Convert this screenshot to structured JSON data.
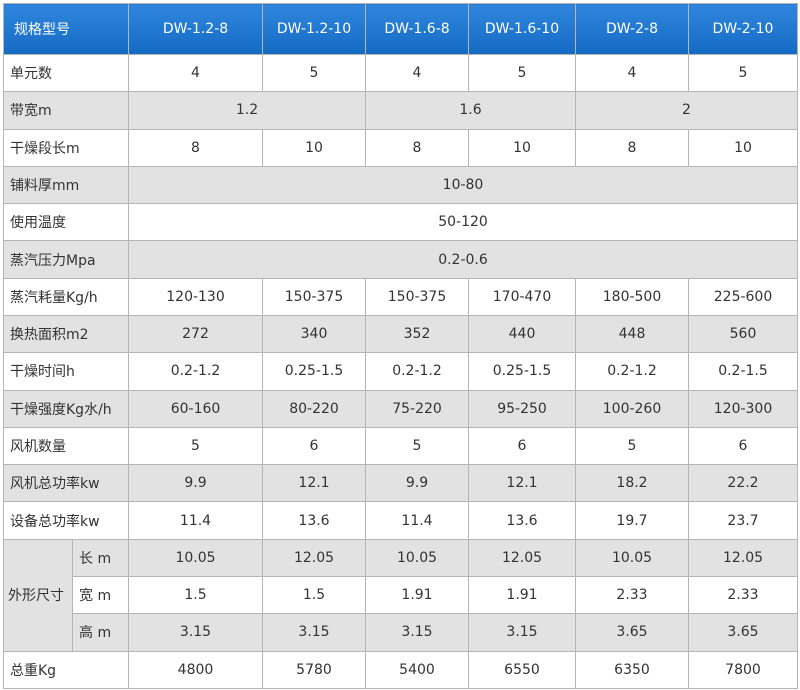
{
  "table": {
    "header": [
      "规格型号",
      "DW-1.2-8",
      "DW-1.2-10",
      "DW-1.6-8",
      "DW-1.6-10",
      "DW-2-8",
      "DW-2-10"
    ],
    "rows": [
      {
        "label": "单元数",
        "cells": [
          "4",
          "5",
          "4",
          "5",
          "4",
          "5"
        ]
      },
      {
        "label": "带宽m",
        "cells": [
          "1.2",
          "1.6",
          "2"
        ]
      },
      {
        "label": "干燥段长m",
        "cells": [
          "8",
          "10",
          "8",
          "10",
          "8",
          "10"
        ]
      },
      {
        "label": "铺料厚mm",
        "cells": [
          "10-80"
        ]
      },
      {
        "label": "使用温度",
        "cells": [
          "50-120"
        ]
      },
      {
        "label": "蒸汽压力Mpa",
        "cells": [
          "0.2-0.6"
        ]
      },
      {
        "label": "蒸汽耗量Kg/h",
        "cells": [
          "120-130",
          "150-375",
          "150-375",
          "170-470",
          "180-500",
          "225-600"
        ]
      },
      {
        "label": "换热面积m2",
        "cells": [
          "272",
          "340",
          "352",
          "440",
          "448",
          "560"
        ]
      },
      {
        "label": "干燥时间h",
        "cells": [
          "0.2-1.2",
          "0.25-1.5",
          "0.2-1.2",
          "0.25-1.5",
          "0.2-1.2",
          "0.2-1.5"
        ]
      },
      {
        "label": "干燥强度Kg水/h",
        "cells": [
          "60-160",
          "80-220",
          "75-220",
          "95-250",
          "100-260",
          "120-300"
        ]
      },
      {
        "label": "风机数量",
        "cells": [
          "5",
          "6",
          "5",
          "6",
          "5",
          "6"
        ]
      },
      {
        "label": "风机总功率kw",
        "cells": [
          "9.9",
          "12.1",
          "9.9",
          "12.1",
          "18.2",
          "22.2"
        ]
      },
      {
        "label": "设备总功率kw",
        "cells": [
          "11.4",
          "13.6",
          "11.4",
          "13.6",
          "19.7",
          "23.7"
        ]
      },
      {
        "label": "外形尺寸",
        "subrows": [
          {
            "label": "长 m",
            "cells": [
              "10.05",
              "12.05",
              "10.05",
              "12.05",
              "10.05",
              "12.05"
            ]
          },
          {
            "label": "宽 m",
            "cells": [
              "1.5",
              "1.5",
              "1.91",
              "1.91",
              "2.33",
              "2.33"
            ]
          },
          {
            "label": "高 m",
            "cells": [
              "3.15",
              "3.15",
              "3.15",
              "3.15",
              "3.65",
              "3.65"
            ]
          }
        ]
      },
      {
        "label": "总重Kg",
        "cells": [
          "4800",
          "5780",
          "5400",
          "6550",
          "6350",
          "7800"
        ]
      }
    ]
  }
}
